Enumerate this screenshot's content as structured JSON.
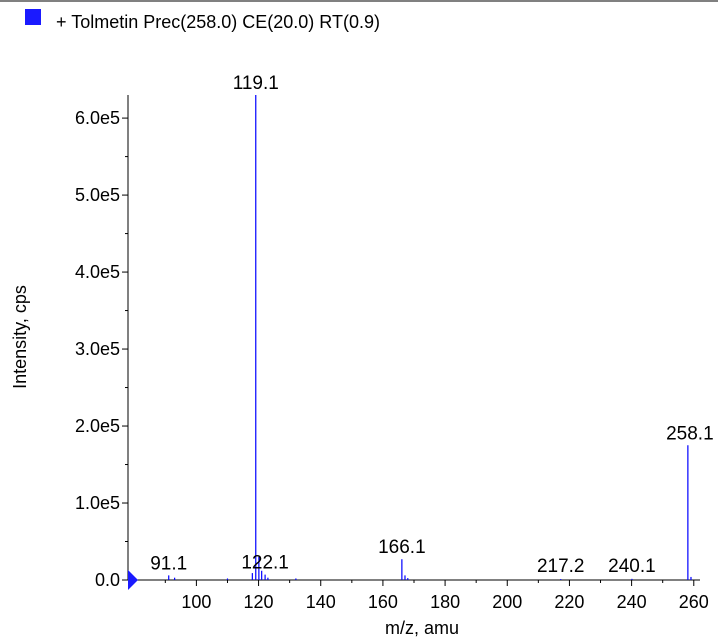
{
  "legend": {
    "swatch_color": "#1a1aff",
    "label": "+ Tolmetin Prec(258.0) CE(20.0) RT(0.9)"
  },
  "colors": {
    "series": "#0000ff",
    "axis": "#000000",
    "marker": "#1a1aff"
  },
  "chart_data": {
    "type": "bar",
    "title": "",
    "xlabel": "m/z, amu",
    "ylabel": "Intensity, cps",
    "xlim": [
      78,
      262
    ],
    "ylim": [
      0,
      630000
    ],
    "x_ticks": [
      {
        "value": 100,
        "label": "100"
      },
      {
        "value": 120,
        "label": "120"
      },
      {
        "value": 140,
        "label": "140"
      },
      {
        "value": 160,
        "label": "160"
      },
      {
        "value": 180,
        "label": "180"
      },
      {
        "value": 200,
        "label": "200"
      },
      {
        "value": 220,
        "label": "220"
      },
      {
        "value": 240,
        "label": "240"
      },
      {
        "value": 260,
        "label": "260"
      }
    ],
    "y_ticks": [
      {
        "value": 0,
        "label": "0.0"
      },
      {
        "value": 100000,
        "label": "1.0e5"
      },
      {
        "value": 200000,
        "label": "2.0e5"
      },
      {
        "value": 300000,
        "label": "3.0e5"
      },
      {
        "value": 400000,
        "label": "4.0e5"
      },
      {
        "value": 500000,
        "label": "5.0e5"
      },
      {
        "value": 600000,
        "label": "6.0e5"
      }
    ],
    "series": [
      {
        "x": [
          91.1,
          93.0,
          110.0,
          118.0,
          119.1,
          120.1,
          121.0,
          122.1,
          123.0,
          132.0,
          166.1,
          167.1,
          168.0,
          217.2,
          240.1,
          258.1,
          259.1
        ],
        "values": [
          6000,
          3000,
          2000,
          9000,
          630000,
          30000,
          12000,
          7000,
          3000,
          2000,
          27000,
          6000,
          2500,
          1200,
          1500,
          175000,
          4000
        ]
      }
    ],
    "peak_labels": [
      {
        "x": 91.1,
        "text": "91.1"
      },
      {
        "x": 119.1,
        "text": "119.1"
      },
      {
        "x": 122.1,
        "text": "122.1"
      },
      {
        "x": 166.1,
        "text": "166.1"
      },
      {
        "x": 217.2,
        "text": "217.2"
      },
      {
        "x": 240.1,
        "text": "240.1"
      },
      {
        "x": 258.1,
        "text": "258.1"
      }
    ],
    "grid": false,
    "legend_position": "top-left"
  }
}
